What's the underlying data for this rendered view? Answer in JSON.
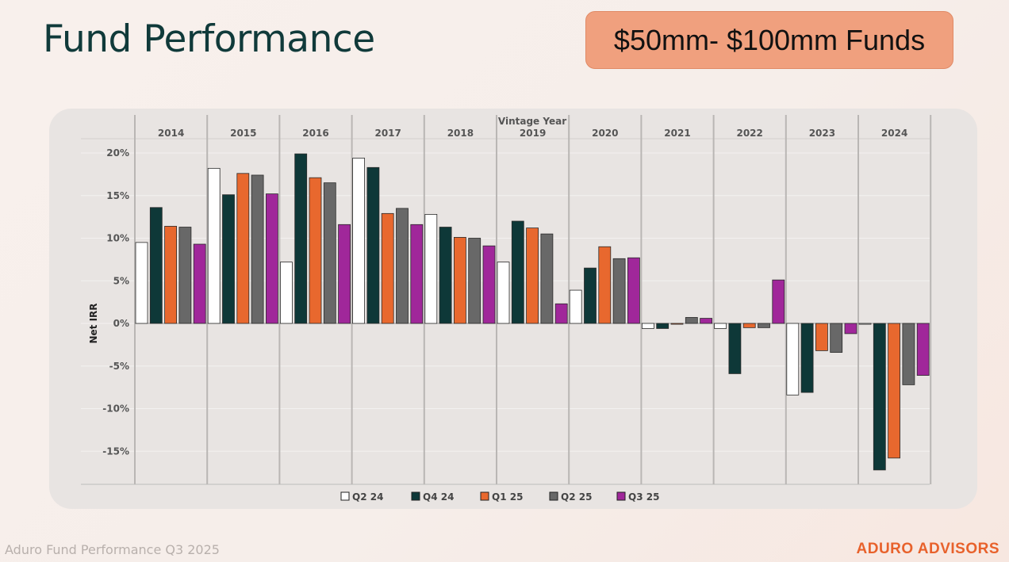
{
  "page": {
    "title": "Fund Performance",
    "badge": "$50mm- $100mm Funds",
    "footer_left": "Aduro Fund Performance Q3 2025",
    "footer_right": "ADURO ADVISORS"
  },
  "colors": {
    "Q2 24": "#ffffff",
    "Q4 24": "#0e3838",
    "Q1 25": "#e8682e",
    "Q2 25": "#686868",
    "Q3 25": "#a0279a"
  },
  "chart_data": {
    "type": "bar",
    "title": "",
    "xlabel": "Vintage Year",
    "ylabel": "Net IRR",
    "ylim": [
      -19,
      20
    ],
    "yticks": [
      20,
      15,
      10,
      5,
      0,
      -5,
      -10,
      -15
    ],
    "ytick_labels": [
      "20%",
      "15%",
      "10%",
      "5%",
      "0%",
      "-5%",
      "-10%",
      "-15%"
    ],
    "categories": [
      "2014",
      "2015",
      "2016",
      "2017",
      "2018",
      "2019",
      "2020",
      "2021",
      "2022",
      "2023",
      "2024"
    ],
    "legend_position": "bottom",
    "series": [
      {
        "name": "Q2 24",
        "values": [
          9.5,
          18.2,
          7.2,
          19.4,
          12.8,
          7.2,
          3.9,
          -0.6,
          -0.6,
          -8.4,
          -0.1
        ]
      },
      {
        "name": "Q4 24",
        "values": [
          13.6,
          15.1,
          19.9,
          18.3,
          11.3,
          12.0,
          6.5,
          -0.6,
          -5.9,
          -8.1,
          -17.2
        ]
      },
      {
        "name": "Q1 25",
        "values": [
          11.4,
          17.6,
          17.1,
          12.9,
          10.1,
          11.2,
          9.0,
          -0.1,
          -0.5,
          -3.2,
          -15.8
        ]
      },
      {
        "name": "Q2 25",
        "values": [
          11.3,
          17.4,
          16.5,
          13.5,
          10.0,
          10.5,
          7.6,
          0.7,
          -0.5,
          -3.4,
          -7.2
        ]
      },
      {
        "name": "Q3 25",
        "values": [
          9.3,
          15.2,
          11.6,
          11.6,
          9.1,
          2.3,
          7.7,
          0.6,
          5.1,
          -1.2,
          -6.1
        ]
      }
    ]
  }
}
